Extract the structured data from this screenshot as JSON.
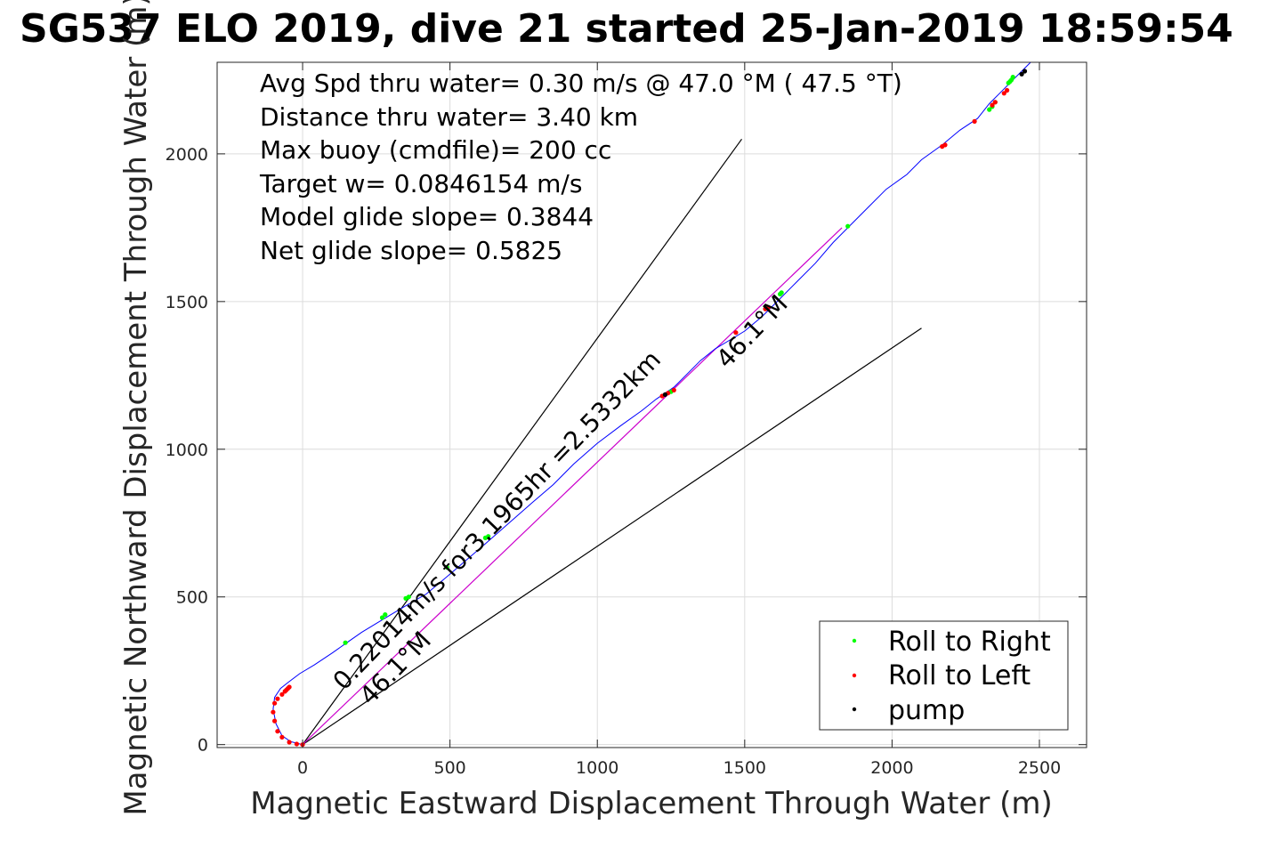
{
  "chart_data": {
    "type": "line",
    "title": "SG537 ELO 2019, dive 21 started 25-Jan-2019 18:59:54",
    "xlabel": "Magnetic Eastward Displacement Through Water (m)",
    "ylabel": "Magnetic Northward Displacement Through Water (m)",
    "xlim": [
      -290,
      2660
    ],
    "ylim": [
      -10,
      2310
    ],
    "xticks": [
      0,
      500,
      1000,
      1500,
      2000,
      2500
    ],
    "yticks": [
      0,
      500,
      1000,
      1500,
      2000
    ],
    "grid": true,
    "annotations": [
      "Avg Spd thru water=  0.30 m/s @  47.0 °M ( 47.5 °T)",
      "Distance thru water=  3.40 km",
      "Max buoy (cmdfile)= 200 cc",
      "Target w= 0.0846154 m/s",
      "Model glide slope= 0.3844",
      "Net glide slope= 0.5825"
    ],
    "rotated_labels": [
      {
        "text": "0.22014m/s for3.1965hr =2.5332km",
        "x": 140,
        "y": 180,
        "angle_deg": 46.1
      },
      {
        "text": "46.1°M",
        "x": 230,
        "y": 130,
        "angle_deg": 46.1
      },
      {
        "text": "46.1°M",
        "x": 1440,
        "y": 1270,
        "angle_deg": 46.1
      }
    ],
    "reference_lines": [
      {
        "name": "cone-upper",
        "x": [
          0,
          1490
        ],
        "y": [
          0,
          2050
        ]
      },
      {
        "name": "cone-lower",
        "x": [
          0,
          2100
        ],
        "y": [
          0,
          1410
        ]
      },
      {
        "name": "current-vector",
        "x": [
          0,
          1830
        ],
        "y": [
          0,
          1750
        ]
      }
    ],
    "series": [
      {
        "name": "track",
        "color": "#0000ff",
        "x": [
          0,
          -40,
          -70,
          -90,
          -100,
          -95,
          -75,
          -50,
          -10,
          40,
          100,
          150,
          200,
          250,
          300,
          350,
          420,
          480,
          550,
          620,
          700,
          780,
          850,
          920,
          1000,
          1080,
          1150,
          1200,
          1260,
          1300,
          1350,
          1400,
          1450,
          1500,
          1560,
          1620,
          1680,
          1740,
          1800,
          1860,
          1920,
          1980,
          2050,
          2100,
          2170,
          2230,
          2290,
          2330,
          2370,
          2410,
          2440,
          2470
        ],
        "y": [
          0,
          10,
          30,
          70,
          120,
          160,
          190,
          210,
          240,
          270,
          310,
          345,
          380,
          410,
          440,
          470,
          510,
          560,
          620,
          680,
          750,
          820,
          880,
          950,
          1020,
          1080,
          1130,
          1170,
          1210,
          1250,
          1300,
          1340,
          1370,
          1400,
          1450,
          1510,
          1570,
          1630,
          1700,
          1760,
          1820,
          1880,
          1930,
          1980,
          2030,
          2080,
          2120,
          2170,
          2210,
          2250,
          2280,
          2310
        ]
      },
      {
        "name": "Roll to Right",
        "color": "#00ff00",
        "x": [
          145,
          270,
          280,
          350,
          360,
          490,
          620,
          630,
          1250,
          1620,
          1625,
          1850,
          2330,
          2340,
          2350,
          2395,
          2400,
          2405,
          2410
        ],
        "y": [
          345,
          430,
          440,
          495,
          500,
          600,
          700,
          705,
          1195,
          1525,
          1530,
          1755,
          2150,
          2160,
          2175,
          2240,
          2245,
          2250,
          2260
        ]
      },
      {
        "name": "Roll to Left",
        "color": "#ff0000",
        "x": [
          0,
          -20,
          -45,
          -70,
          -85,
          -95,
          -100,
          -95,
          -85,
          -70,
          -60,
          -55,
          -50,
          -45,
          1220,
          1240,
          1260,
          1470,
          1570,
          1580,
          2170,
          2180,
          2280,
          2340,
          2350,
          2380,
          2390
        ],
        "y": [
          0,
          2,
          8,
          25,
          45,
          80,
          110,
          140,
          155,
          170,
          180,
          185,
          190,
          195,
          1180,
          1190,
          1200,
          1395,
          1475,
          1480,
          2025,
          2030,
          2110,
          2165,
          2175,
          2205,
          2215
        ]
      },
      {
        "name": "pump",
        "color": "#000000",
        "x": [
          1230,
          2440,
          2450
        ],
        "y": [
          1185,
          2270,
          2280
        ]
      }
    ],
    "legend": {
      "location": "bottom-right",
      "entries": [
        "Roll to Right",
        "Roll to Left",
        "pump"
      ]
    }
  }
}
